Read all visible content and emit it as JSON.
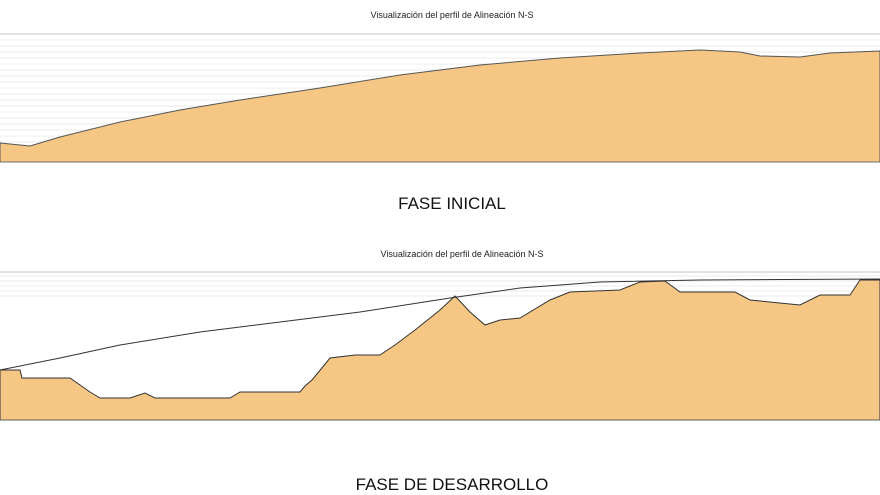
{
  "panels": [
    {
      "title": "Visualización del perfil de  Alineación N-S",
      "caption": "FASE INICIAL"
    },
    {
      "title": "Visualización del perfil de  Alineación N-S",
      "caption": "FASE DE DESARROLLO"
    }
  ]
}
